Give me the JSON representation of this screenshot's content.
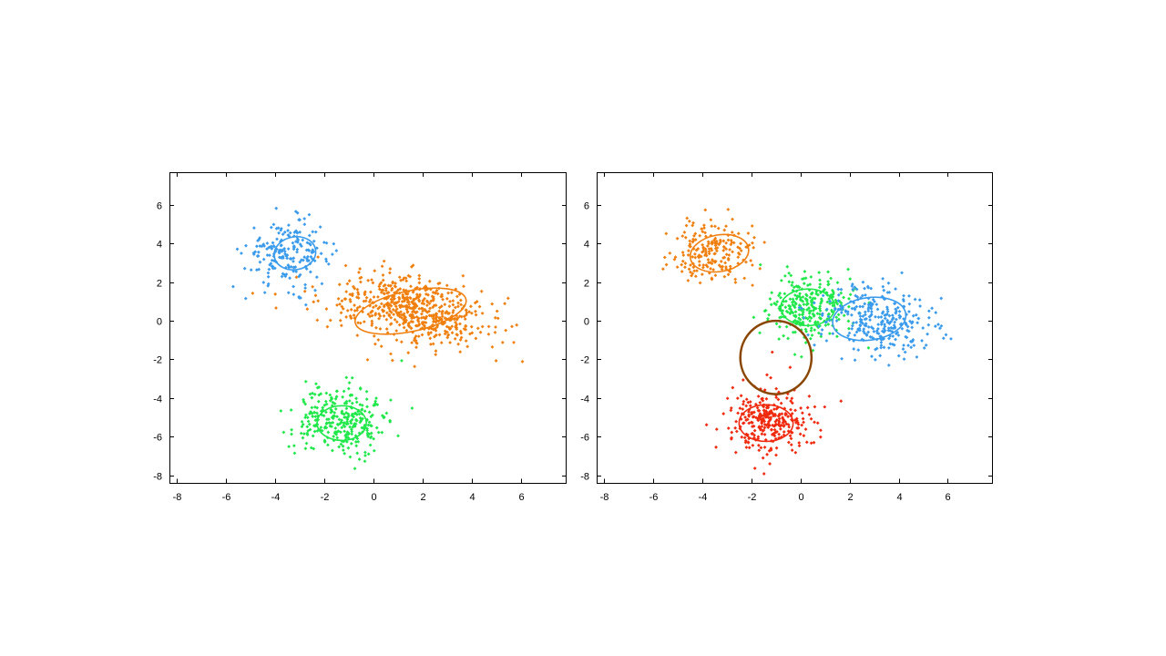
{
  "chart_data": [
    {
      "type": "scatter",
      "title": "",
      "xlabel": "",
      "ylabel": "",
      "xlim": [
        -8.3,
        7.8
      ],
      "ylim": [
        -8.4,
        7.7
      ],
      "xticks": [
        -8,
        -6,
        -4,
        -2,
        0,
        2,
        4,
        6
      ],
      "yticks": [
        -8,
        -6,
        -4,
        -2,
        0,
        2,
        4,
        6
      ],
      "grid": false,
      "series": [
        {
          "color": "#3a9bec",
          "center": [
            -3.5,
            3.5
          ],
          "std": [
            0.85,
            0.85
          ],
          "corr": 0,
          "count": 200,
          "ellipse": {
            "center": [
              -3.2,
              3.5
            ],
            "rx": 0.85,
            "ry": 0.85,
            "angle": -10
          }
        },
        {
          "color": "#f07f0e",
          "center": [
            1.6,
            0.5
          ],
          "std": [
            1.6,
            0.9
          ],
          "corr": -0.35,
          "count": 600,
          "ellipse": {
            "center": [
              1.5,
              0.5
            ],
            "rx": 2.3,
            "ry": 1.05,
            "angle": -12
          }
        },
        {
          "color": "#20e84a",
          "center": [
            -1.3,
            -5.2
          ],
          "std": [
            0.85,
            0.85
          ],
          "corr": 0,
          "count": 300,
          "ellipse": {
            "center": [
              -1.3,
              -5.3
            ],
            "rx": 1.0,
            "ry": 0.9,
            "angle": 0
          }
        }
      ]
    },
    {
      "type": "scatter",
      "title": "",
      "xlabel": "",
      "ylabel": "",
      "xlim": [
        -8.3,
        7.8
      ],
      "ylim": [
        -8.4,
        7.7
      ],
      "xticks": [
        -8,
        -6,
        -4,
        -2,
        0,
        2,
        4,
        6
      ],
      "yticks": [
        -8,
        -6,
        -4,
        -2,
        0,
        2,
        4,
        6
      ],
      "grid": false,
      "series": [
        {
          "color": "#f07f0e",
          "center": [
            -3.5,
            3.5
          ],
          "std": [
            0.85,
            0.85
          ],
          "corr": 0,
          "count": 200,
          "ellipse": {
            "center": [
              -3.3,
              3.5
            ],
            "rx": 1.2,
            "ry": 0.95,
            "angle": -10
          }
        },
        {
          "color": "#20e84a",
          "center": [
            0.3,
            0.7
          ],
          "std": [
            0.9,
            0.8
          ],
          "corr": 0,
          "count": 280,
          "ellipse": {
            "center": [
              0.3,
              0.7
            ],
            "rx": 1.1,
            "ry": 0.95,
            "angle": 0
          }
        },
        {
          "color": "#3a9bec",
          "center": [
            3.2,
            0.0
          ],
          "std": [
            1.2,
            0.9
          ],
          "corr": -0.2,
          "count": 300,
          "ellipse": {
            "center": [
              2.8,
              0.1
            ],
            "rx": 1.5,
            "ry": 1.1,
            "angle": -8
          }
        },
        {
          "color": "#f02a0e",
          "center": [
            -1.3,
            -5.2
          ],
          "std": [
            0.85,
            0.85
          ],
          "corr": 0,
          "count": 300,
          "ellipse": {
            "center": [
              -1.4,
              -5.3
            ],
            "rx": 1.1,
            "ry": 0.95,
            "angle": 0
          }
        },
        {
          "color": "#8a4500",
          "center": [
            -1.0,
            -1.9
          ],
          "std": [
            0,
            0
          ],
          "corr": 0,
          "count": 0,
          "ellipse": {
            "center": [
              -1.0,
              -1.9
            ],
            "rx": 1.45,
            "ry": 1.9,
            "angle": 0,
            "width": 2.5
          }
        }
      ]
    }
  ]
}
